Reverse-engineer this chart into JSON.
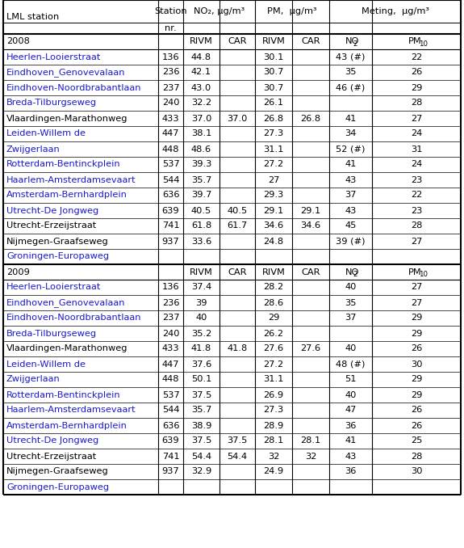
{
  "blue_color": "#1a1acd",
  "black_color": "#000000",
  "bg_color": "#FFFFFF",
  "year_2008_label": "2008",
  "year_2009_label": "2009",
  "rows_2008": [
    {
      "station": "Heerlen-Looierstraat",
      "nr": "136",
      "no2_rivm": "44.8",
      "no2_car": "",
      "pm_rivm": "30.1",
      "pm_car": "",
      "meting_no2": "43 (#)",
      "meting_pm10": "22",
      "blue": true
    },
    {
      "station": "Eindhoven_Genovevalaan",
      "nr": "236",
      "no2_rivm": "42.1",
      "no2_car": "",
      "pm_rivm": "30.7",
      "pm_car": "",
      "meting_no2": "35",
      "meting_pm10": "26",
      "blue": true
    },
    {
      "station": "Eindhoven-Noordbrabantlaan",
      "nr": "237",
      "no2_rivm": "43.0",
      "no2_car": "",
      "pm_rivm": "30.7",
      "pm_car": "",
      "meting_no2": "46 (#)",
      "meting_pm10": "29",
      "blue": true
    },
    {
      "station": "Breda-Tilburgseweg",
      "nr": "240",
      "no2_rivm": "32.2",
      "no2_car": "",
      "pm_rivm": "26.1",
      "pm_car": "",
      "meting_no2": "",
      "meting_pm10": "28",
      "blue": true
    },
    {
      "station": "Vlaardingen-Marathonweg",
      "nr": "433",
      "no2_rivm": "37.0",
      "no2_car": "37.0",
      "pm_rivm": "26.8",
      "pm_car": "26.8",
      "meting_no2": "41",
      "meting_pm10": "27",
      "blue": false
    },
    {
      "station": "Leiden-Willem de",
      "nr": "447",
      "no2_rivm": "38.1",
      "no2_car": "",
      "pm_rivm": "27.3",
      "pm_car": "",
      "meting_no2": "34",
      "meting_pm10": "24",
      "blue": true
    },
    {
      "station": "Zwijgerlaan",
      "nr": "448",
      "no2_rivm": "48.6",
      "no2_car": "",
      "pm_rivm": "31.1",
      "pm_car": "",
      "meting_no2": "52 (#)",
      "meting_pm10": "31",
      "blue": true
    },
    {
      "station": "Rotterdam-Bentinckplein",
      "nr": "537",
      "no2_rivm": "39.3",
      "no2_car": "",
      "pm_rivm": "27.2",
      "pm_car": "",
      "meting_no2": "41",
      "meting_pm10": "24",
      "blue": true
    },
    {
      "station": "Haarlem-Amsterdamsevaart",
      "nr": "544",
      "no2_rivm": "35.7",
      "no2_car": "",
      "pm_rivm": "27",
      "pm_car": "",
      "meting_no2": "43",
      "meting_pm10": "23",
      "blue": true
    },
    {
      "station": "Amsterdam-Bernhardplein",
      "nr": "636",
      "no2_rivm": "39.7",
      "no2_car": "",
      "pm_rivm": "29.3",
      "pm_car": "",
      "meting_no2": "37",
      "meting_pm10": "22",
      "blue": true
    },
    {
      "station": "Utrecht-De Jongweg",
      "nr": "639",
      "no2_rivm": "40.5",
      "no2_car": "40.5",
      "pm_rivm": "29.1",
      "pm_car": "29.1",
      "meting_no2": "43",
      "meting_pm10": "23",
      "blue": true
    },
    {
      "station": "Utrecht-Erzeijstraat",
      "nr": "741",
      "no2_rivm": "61.8",
      "no2_car": "61.7",
      "pm_rivm": "34.6",
      "pm_car": "34.6",
      "meting_no2": "45",
      "meting_pm10": "28",
      "blue": false
    },
    {
      "station": "Nijmegen-Graafseweg",
      "nr": "937",
      "no2_rivm": "33.6",
      "no2_car": "",
      "pm_rivm": "24.8",
      "pm_car": "",
      "meting_no2": "39 (#)",
      "meting_pm10": "27",
      "blue": false
    },
    {
      "station": "Groningen-Europaweg",
      "nr": "",
      "no2_rivm": "",
      "no2_car": "",
      "pm_rivm": "",
      "pm_car": "",
      "meting_no2": "",
      "meting_pm10": "",
      "blue": true
    }
  ],
  "rows_2009": [
    {
      "station": "Heerlen-Looierstraat",
      "nr": "136",
      "no2_rivm": "37.4",
      "no2_car": "",
      "pm_rivm": "28.2",
      "pm_car": "",
      "meting_no2": "40",
      "meting_pm10": "27",
      "blue": true
    },
    {
      "station": "Eindhoven_Genovevalaan",
      "nr": "236",
      "no2_rivm": "39",
      "no2_car": "",
      "pm_rivm": "28.6",
      "pm_car": "",
      "meting_no2": "35",
      "meting_pm10": "27",
      "blue": true
    },
    {
      "station": "Eindhoven-Noordbrabantlaan",
      "nr": "237",
      "no2_rivm": "40",
      "no2_car": "",
      "pm_rivm": "29",
      "pm_car": "",
      "meting_no2": "37",
      "meting_pm10": "29",
      "blue": true
    },
    {
      "station": "Breda-Tilburgseweg",
      "nr": "240",
      "no2_rivm": "35.2",
      "no2_car": "",
      "pm_rivm": "26.2",
      "pm_car": "",
      "meting_no2": "",
      "meting_pm10": "29",
      "blue": true
    },
    {
      "station": "Vlaardingen-Marathonweg",
      "nr": "433",
      "no2_rivm": "41.8",
      "no2_car": "41.8",
      "pm_rivm": "27.6",
      "pm_car": "27.6",
      "meting_no2": "40",
      "meting_pm10": "26",
      "blue": false
    },
    {
      "station": "Leiden-Willem de",
      "nr": "447",
      "no2_rivm": "37.6",
      "no2_car": "",
      "pm_rivm": "27.2",
      "pm_car": "",
      "meting_no2": "48 (#)",
      "meting_pm10": "30",
      "blue": true
    },
    {
      "station": "Zwijgerlaan",
      "nr": "448",
      "no2_rivm": "50.1",
      "no2_car": "",
      "pm_rivm": "31.1",
      "pm_car": "",
      "meting_no2": "51",
      "meting_pm10": "29",
      "blue": true
    },
    {
      "station": "Rotterdam-Bentinckplein",
      "nr": "537",
      "no2_rivm": "37.5",
      "no2_car": "",
      "pm_rivm": "26.9",
      "pm_car": "",
      "meting_no2": "40",
      "meting_pm10": "29",
      "blue": true
    },
    {
      "station": "Haarlem-Amsterdamsevaart",
      "nr": "544",
      "no2_rivm": "35.7",
      "no2_car": "",
      "pm_rivm": "27.3",
      "pm_car": "",
      "meting_no2": "47",
      "meting_pm10": "26",
      "blue": true
    },
    {
      "station": "Amsterdam-Bernhardplein",
      "nr": "636",
      "no2_rivm": "38.9",
      "no2_car": "",
      "pm_rivm": "28.9",
      "pm_car": "",
      "meting_no2": "36",
      "meting_pm10": "26",
      "blue": true
    },
    {
      "station": "Utrecht-De Jongweg",
      "nr": "639",
      "no2_rivm": "37.5",
      "no2_car": "37.5",
      "pm_rivm": "28.1",
      "pm_car": "28.1",
      "meting_no2": "41",
      "meting_pm10": "25",
      "blue": true
    },
    {
      "station": "Utrecht-Erzeijstraat",
      "nr": "741",
      "no2_rivm": "54.4",
      "no2_car": "54.4",
      "pm_rivm": "32",
      "pm_car": "32",
      "meting_no2": "43",
      "meting_pm10": "28",
      "blue": false
    },
    {
      "station": "Nijmegen-Graafseweg",
      "nr": "937",
      "no2_rivm": "32.9",
      "no2_car": "",
      "pm_rivm": "24.9",
      "pm_car": "",
      "meting_no2": "36",
      "meting_pm10": "30",
      "blue": false
    },
    {
      "station": "Groningen-Europaweg",
      "nr": "",
      "no2_rivm": "",
      "no2_car": "",
      "pm_rivm": "",
      "pm_car": "",
      "meting_no2": "",
      "meting_pm10": "",
      "blue": true
    }
  ]
}
